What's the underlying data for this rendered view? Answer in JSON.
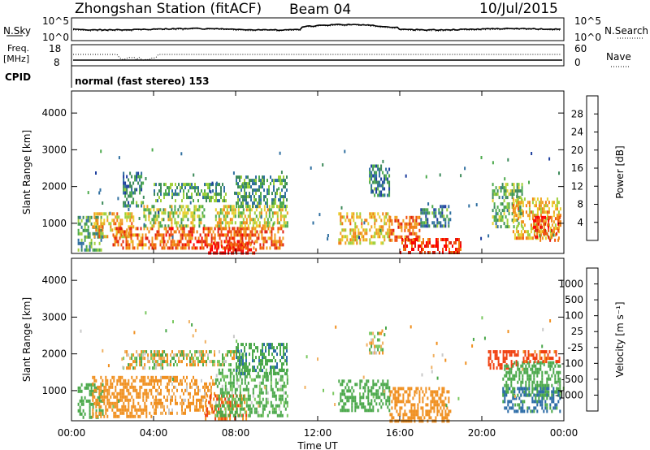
{
  "header": {
    "title": "Zhongshan Station (fitACF)",
    "beam": "Beam 04",
    "date": "10/Jul/2015"
  },
  "noise_panel": {
    "left_label": "N.Sky",
    "right_label": "N.Search",
    "left_ticks": [
      "10^5",
      "10^0"
    ],
    "right_ticks": [
      "10^5",
      "10^0"
    ]
  },
  "freq_panel": {
    "left_label_line1": "Freq.",
    "left_label_line2": "[MHz]",
    "right_label": "Nave",
    "left_ticks": [
      "18",
      "8"
    ],
    "right_ticks": [
      "60",
      "0"
    ]
  },
  "cpid": {
    "label": "CPID",
    "text": "normal (fast stereo) 153"
  },
  "x_axis": {
    "label": "Time UT",
    "ticks": [
      "00:00",
      "04:00",
      "08:00",
      "12:00",
      "16:00",
      "20:00",
      "00:00"
    ]
  },
  "y_axis": {
    "label": "Slant Range [km]",
    "ticks": [
      "4000",
      "3000",
      "2000",
      "1000"
    ]
  },
  "colorbars": [
    {
      "label": "Power [dB]",
      "ticks": [
        "28",
        "24",
        "20",
        "16",
        "12",
        "8",
        "4"
      ],
      "colors": [
        "#0000ff",
        "#1e3f9e",
        "#2f6fa0",
        "#3c8a5a",
        "#4caa4c",
        "#9fcf3a",
        "#e8d030",
        "#f0a020",
        "#f08010",
        "#f05010",
        "#e02010",
        "#ff0000"
      ]
    },
    {
      "label": "Velocity [m s⁻¹]",
      "ticks": [
        "1000",
        "500",
        "100",
        "25",
        "-25",
        "-100",
        "-500",
        "-1000"
      ],
      "colors": [
        "#1f3fa8",
        "#2a6aa6",
        "#3a8a70",
        "#4aa84a",
        "#7ac860",
        "#c8c8c8",
        "#c8c8c8",
        "#f0b060",
        "#f09020",
        "#f07010",
        "#f04010",
        "#ff0000"
      ]
    }
  ],
  "chart_data": {
    "type": "heatmap",
    "x_range_hours": [
      0,
      24
    ],
    "y_range_km": [
      180,
      4600
    ],
    "panels": [
      {
        "name": "Power",
        "regions": [
          {
            "t0": 0.3,
            "t1": 1.5,
            "r0": 300,
            "r1": 1200,
            "value": 10
          },
          {
            "t0": 1.0,
            "t1": 3.0,
            "r0": 600,
            "r1": 1300,
            "value": 18
          },
          {
            "t0": 2.0,
            "t1": 4.5,
            "r0": 300,
            "r1": 900,
            "value": 22
          },
          {
            "t0": 2.5,
            "t1": 3.5,
            "r0": 1500,
            "r1": 2400,
            "value": 8
          },
          {
            "t0": 3.5,
            "t1": 6.5,
            "r0": 900,
            "r1": 1500,
            "value": 14
          },
          {
            "t0": 4.0,
            "t1": 7.5,
            "r0": 1600,
            "r1": 2100,
            "value": 10
          },
          {
            "t0": 4.5,
            "t1": 8.5,
            "r0": 300,
            "r1": 900,
            "value": 24
          },
          {
            "t0": 6.5,
            "t1": 9.0,
            "r0": 200,
            "r1": 500,
            "value": 28
          },
          {
            "t0": 7.0,
            "t1": 10.5,
            "r0": 900,
            "r1": 1500,
            "value": 16
          },
          {
            "t0": 7.5,
            "t1": 10.3,
            "r0": 300,
            "r1": 900,
            "value": 22
          },
          {
            "t0": 8.0,
            "t1": 10.5,
            "r0": 1500,
            "r1": 2300,
            "value": 10
          },
          {
            "t0": 13.0,
            "t1": 15.5,
            "r0": 500,
            "r1": 1300,
            "value": 18
          },
          {
            "t0": 14.5,
            "t1": 15.5,
            "r0": 1800,
            "r1": 2600,
            "value": 8
          },
          {
            "t0": 15.5,
            "t1": 17.0,
            "r0": 500,
            "r1": 1200,
            "value": 22
          },
          {
            "t0": 16.0,
            "t1": 19.0,
            "r0": 200,
            "r1": 600,
            "value": 26
          },
          {
            "t0": 17.0,
            "t1": 18.5,
            "r0": 900,
            "r1": 1500,
            "value": 8
          },
          {
            "t0": 20.5,
            "t1": 22.0,
            "r0": 900,
            "r1": 2100,
            "value": 12
          },
          {
            "t0": 21.5,
            "t1": 23.8,
            "r0": 600,
            "r1": 1700,
            "value": 18
          },
          {
            "t0": 22.5,
            "t1": 23.8,
            "r0": 500,
            "r1": 1200,
            "value": 26
          }
        ]
      },
      {
        "name": "Velocity",
        "regions": [
          {
            "t0": 0.3,
            "t1": 1.5,
            "r0": 300,
            "r1": 1200,
            "value": 300
          },
          {
            "t0": 1.0,
            "t1": 4.0,
            "r0": 300,
            "r1": 1400,
            "value": -300
          },
          {
            "t0": 2.5,
            "t1": 4.5,
            "r0": 1600,
            "r1": 2100,
            "value": 0
          },
          {
            "t0": 4.0,
            "t1": 7.0,
            "r0": 400,
            "r1": 1400,
            "value": -200
          },
          {
            "t0": 4.0,
            "t1": 8.5,
            "r0": 1700,
            "r1": 2100,
            "value": 0
          },
          {
            "t0": 6.5,
            "t1": 8.5,
            "r0": 200,
            "r1": 900,
            "value": -500
          },
          {
            "t0": 7.0,
            "t1": 10.5,
            "r0": 300,
            "r1": 1600,
            "value": 200
          },
          {
            "t0": 8.0,
            "t1": 10.5,
            "r0": 1500,
            "r1": 2300,
            "value": 400
          },
          {
            "t0": 13.0,
            "t1": 15.5,
            "r0": 500,
            "r1": 1300,
            "value": 300
          },
          {
            "t0": 14.5,
            "t1": 15.2,
            "r0": 2000,
            "r1": 2600,
            "value": 0
          },
          {
            "t0": 15.5,
            "t1": 18.5,
            "r0": 200,
            "r1": 1100,
            "value": -300
          },
          {
            "t0": 20.3,
            "t1": 21.8,
            "r0": 1600,
            "r1": 2100,
            "value": -700
          },
          {
            "t0": 21.0,
            "t1": 23.8,
            "r0": 900,
            "r1": 1800,
            "value": 300
          },
          {
            "t0": 22.0,
            "t1": 23.8,
            "r0": 1800,
            "r1": 2100,
            "value": -600
          },
          {
            "t0": 21.0,
            "t1": 23.8,
            "r0": 400,
            "r1": 1100,
            "value": 600
          }
        ]
      }
    ]
  }
}
